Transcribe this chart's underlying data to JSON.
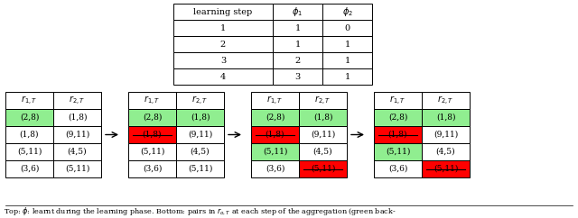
{
  "top_table": {
    "header": [
      "learning step",
      "φ_1",
      "φ_2"
    ],
    "rows": [
      [
        1,
        1,
        0
      ],
      [
        2,
        1,
        1
      ],
      [
        3,
        2,
        1
      ],
      [
        4,
        3,
        1
      ]
    ]
  },
  "bottom_tables": [
    {
      "col_headers": [
        "$r_{1,T}$",
        "$r_{2,T}$"
      ],
      "rows": [
        [
          "(2,8)",
          "(1,8)"
        ],
        [
          "(1,8)",
          "(9,11)"
        ],
        [
          "(5,11)",
          "(4,5)"
        ],
        [
          "(3,6)",
          "(5,11)"
        ]
      ],
      "cell_colors": [
        [
          "#90ee90",
          "#ffffff"
        ],
        [
          "#ffffff",
          "#ffffff"
        ],
        [
          "#ffffff",
          "#ffffff"
        ],
        [
          "#ffffff",
          "#ffffff"
        ]
      ],
      "strikethrough": [
        [
          false,
          false
        ],
        [
          false,
          false
        ],
        [
          false,
          false
        ],
        [
          false,
          false
        ]
      ]
    },
    {
      "col_headers": [
        "$r_{1,T}$",
        "$r_{2,T}$"
      ],
      "rows": [
        [
          "(2,8)",
          "(1,8)"
        ],
        [
          "(1,8)",
          "(9,11)"
        ],
        [
          "(5,11)",
          "(4,5)"
        ],
        [
          "(3,6)",
          "(5,11)"
        ]
      ],
      "cell_colors": [
        [
          "#90ee90",
          "#90ee90"
        ],
        [
          "#ff0000",
          "#ffffff"
        ],
        [
          "#ffffff",
          "#ffffff"
        ],
        [
          "#ffffff",
          "#ffffff"
        ]
      ],
      "strikethrough": [
        [
          false,
          false
        ],
        [
          true,
          false
        ],
        [
          false,
          false
        ],
        [
          false,
          false
        ]
      ]
    },
    {
      "col_headers": [
        "$r_{1,T}$",
        "$r_{2,T}$"
      ],
      "rows": [
        [
          "(2,8)",
          "(1,8)"
        ],
        [
          "(1,8)",
          "(9,11)"
        ],
        [
          "(5,11)",
          "(4,5)"
        ],
        [
          "(3,6)",
          "(5,11)"
        ]
      ],
      "cell_colors": [
        [
          "#90ee90",
          "#90ee90"
        ],
        [
          "#ff0000",
          "#ffffff"
        ],
        [
          "#90ee90",
          "#ffffff"
        ],
        [
          "#ffffff",
          "#ff0000"
        ]
      ],
      "strikethrough": [
        [
          false,
          false
        ],
        [
          true,
          false
        ],
        [
          false,
          false
        ],
        [
          false,
          true
        ]
      ]
    },
    {
      "col_headers": [
        "$r_{1,T}$",
        "$r_{2,T}$"
      ],
      "rows": [
        [
          "(2,8)",
          "(1,8)"
        ],
        [
          "(1,8)",
          "(9,11)"
        ],
        [
          "(5,11)",
          "(4,5)"
        ],
        [
          "(3,6)",
          "(5,11)"
        ]
      ],
      "cell_colors": [
        [
          "#90ee90",
          "#90ee90"
        ],
        [
          "#ff0000",
          "#ffffff"
        ],
        [
          "#90ee90",
          "#ffffff"
        ],
        [
          "#ffffff",
          "#ff0000"
        ]
      ],
      "strikethrough": [
        [
          false,
          false
        ],
        [
          true,
          false
        ],
        [
          false,
          false
        ],
        [
          false,
          true
        ]
      ]
    }
  ],
  "caption": "Top: $\\phi$: learnt during the learning phase. Bottom: pairs in $r_{o,T}$ at each step of the aggregation (green back-",
  "background_color": "#ffffff"
}
